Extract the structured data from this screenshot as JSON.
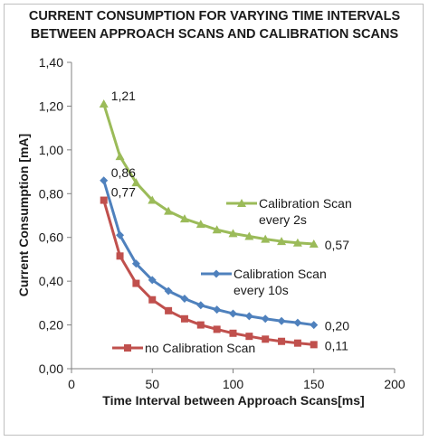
{
  "chart_data": {
    "type": "line",
    "title_lines": [
      "CURRENT CONSUMPTION FOR VARYING TIME INTERVALS",
      "BETWEEN APPROACH SCANS AND CALIBRATION SCANS"
    ],
    "xlabel": "Time Interval between Approach Scans[ms]",
    "ylabel": "Current Consumption [mA]",
    "xlim": [
      0,
      200
    ],
    "ylim": [
      0,
      1.4
    ],
    "xticks": [
      0,
      50,
      100,
      150,
      200
    ],
    "xtick_labels": [
      "0",
      "50",
      "100",
      "150",
      "200"
    ],
    "yticks": [
      0,
      0.2,
      0.4,
      0.6,
      0.8,
      1.0,
      1.2,
      1.4
    ],
    "ytick_labels": [
      "0,00",
      "0,20",
      "0,40",
      "0,60",
      "0,80",
      "1,00",
      "1,20",
      "1,40"
    ],
    "grid": "none",
    "x": [
      20,
      30,
      40,
      50,
      60,
      70,
      80,
      90,
      100,
      110,
      120,
      130,
      140,
      150
    ],
    "series": [
      {
        "name": "Calibration Scan every 2s",
        "legend_lines": [
          "Calibration Scan",
          "every 2s"
        ],
        "color": "#9bbb59",
        "marker": "triangle",
        "values": [
          1.21,
          0.97,
          0.85,
          0.77,
          0.72,
          0.685,
          0.66,
          0.635,
          0.618,
          0.605,
          0.592,
          0.582,
          0.575,
          0.57
        ],
        "labels": [
          {
            "index": 0,
            "text": "1,21"
          },
          {
            "index": 13,
            "text": "0,57"
          }
        ]
      },
      {
        "name": "Calibration Scan every 10s",
        "legend_lines": [
          "Calibration Scan",
          "every 10s"
        ],
        "color": "#4f81bd",
        "marker": "diamond",
        "values": [
          0.86,
          0.61,
          0.48,
          0.405,
          0.355,
          0.32,
          0.29,
          0.27,
          0.252,
          0.24,
          0.228,
          0.218,
          0.21,
          0.2
        ],
        "labels": [
          {
            "index": 0,
            "text": "0,86"
          },
          {
            "index": 13,
            "text": "0,20"
          }
        ]
      },
      {
        "name": "no Calibration Scan",
        "legend_lines": [
          "no Calibration Scan"
        ],
        "color": "#c0504d",
        "marker": "square",
        "values": [
          0.77,
          0.515,
          0.39,
          0.315,
          0.265,
          0.228,
          0.2,
          0.18,
          0.162,
          0.148,
          0.135,
          0.125,
          0.117,
          0.11
        ],
        "labels": [
          {
            "index": 0,
            "text": "0,77"
          },
          {
            "index": 13,
            "text": "0,11"
          }
        ]
      }
    ]
  }
}
